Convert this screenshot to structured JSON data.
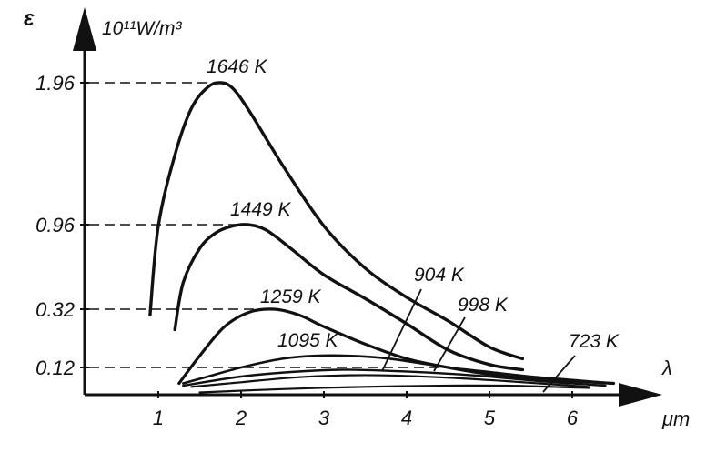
{
  "chart_data": {
    "type": "line",
    "title": "",
    "ylabel": "ε",
    "yunit": "10¹¹W/m³",
    "xlabel": "λ",
    "xunit": "μm",
    "xlim": [
      0.5,
      6.5
    ],
    "x_ticks": [
      "1",
      "2",
      "3",
      "4",
      "5",
      "6"
    ],
    "y_marked_values": [
      "1.96",
      "0.96",
      "0.32",
      "0.12"
    ],
    "grid": false,
    "legend": "none",
    "colors": {
      "line": "#111111",
      "axis": "#111111",
      "dash": "#333333"
    },
    "series": [
      {
        "name": "1646 K",
        "label": "1646 K",
        "points": [
          [
            0.9,
            0.3
          ],
          [
            1.0,
            0.95
          ],
          [
            1.2,
            1.45
          ],
          [
            1.4,
            1.78
          ],
          [
            1.6,
            1.93
          ],
          [
            1.76,
            1.96
          ],
          [
            1.9,
            1.92
          ],
          [
            2.1,
            1.76
          ],
          [
            2.5,
            1.38
          ],
          [
            3.0,
            0.95
          ],
          [
            3.5,
            0.63
          ],
          [
            4.0,
            0.41
          ],
          [
            4.5,
            0.28
          ],
          [
            5.0,
            0.19
          ],
          [
            5.4,
            0.15
          ]
        ]
      },
      {
        "name": "1449 K",
        "label": "1449 K",
        "points": [
          [
            1.2,
            0.25
          ],
          [
            1.3,
            0.52
          ],
          [
            1.5,
            0.78
          ],
          [
            1.7,
            0.9
          ],
          [
            1.9,
            0.95
          ],
          [
            2.08,
            0.96
          ],
          [
            2.3,
            0.92
          ],
          [
            2.6,
            0.78
          ],
          [
            3.0,
            0.58
          ],
          [
            3.5,
            0.4
          ],
          [
            4.0,
            0.27
          ],
          [
            4.5,
            0.18
          ],
          [
            5.0,
            0.13
          ],
          [
            5.4,
            0.11
          ]
        ]
      },
      {
        "name": "1259 K",
        "label": "1259 K",
        "points": [
          [
            1.25,
            0.05
          ],
          [
            1.5,
            0.16
          ],
          [
            1.8,
            0.26
          ],
          [
            2.1,
            0.31
          ],
          [
            2.4,
            0.32
          ],
          [
            2.7,
            0.3
          ],
          [
            3.0,
            0.26
          ],
          [
            3.5,
            0.2
          ],
          [
            4.0,
            0.15
          ],
          [
            4.5,
            0.12
          ],
          [
            5.0,
            0.09
          ],
          [
            5.5,
            0.07
          ],
          [
            6.0,
            0.06
          ],
          [
            6.5,
            0.05
          ]
        ]
      },
      {
        "name": "1095 K",
        "label": "1095 K",
        "points": [
          [
            1.3,
            0.05
          ],
          [
            1.6,
            0.08
          ],
          [
            2.0,
            0.12
          ],
          [
            2.5,
            0.15
          ],
          [
            2.9,
            0.16
          ],
          [
            3.3,
            0.16
          ],
          [
            3.8,
            0.15
          ],
          [
            4.5,
            0.12
          ],
          [
            5.0,
            0.1
          ],
          [
            5.5,
            0.08
          ],
          [
            6.0,
            0.065
          ],
          [
            6.5,
            0.05
          ]
        ]
      },
      {
        "name": "998 K",
        "label": "998 K",
        "points": [
          [
            1.3,
            0.04
          ],
          [
            2.0,
            0.08
          ],
          [
            2.6,
            0.1
          ],
          [
            3.2,
            0.11
          ],
          [
            3.8,
            0.105
          ],
          [
            4.4,
            0.095
          ],
          [
            5.0,
            0.08
          ],
          [
            5.6,
            0.06
          ],
          [
            6.2,
            0.045
          ],
          [
            6.4,
            0.04
          ]
        ]
      },
      {
        "name": "904 K",
        "label": "904 K",
        "points": [
          [
            1.4,
            0.035
          ],
          [
            2.0,
            0.055
          ],
          [
            2.6,
            0.075
          ],
          [
            3.2,
            0.085
          ],
          [
            3.8,
            0.085
          ],
          [
            4.5,
            0.075
          ],
          [
            5.2,
            0.06
          ],
          [
            5.8,
            0.045
          ],
          [
            6.2,
            0.035
          ]
        ]
      },
      {
        "name": "723 K",
        "label": "723 K",
        "points": [
          [
            1.5,
            0.01
          ],
          [
            2.5,
            0.025
          ],
          [
            3.5,
            0.035
          ],
          [
            4.5,
            0.04
          ],
          [
            5.2,
            0.04
          ],
          [
            6.0,
            0.032
          ],
          [
            6.2,
            0.03
          ]
        ]
      }
    ]
  }
}
